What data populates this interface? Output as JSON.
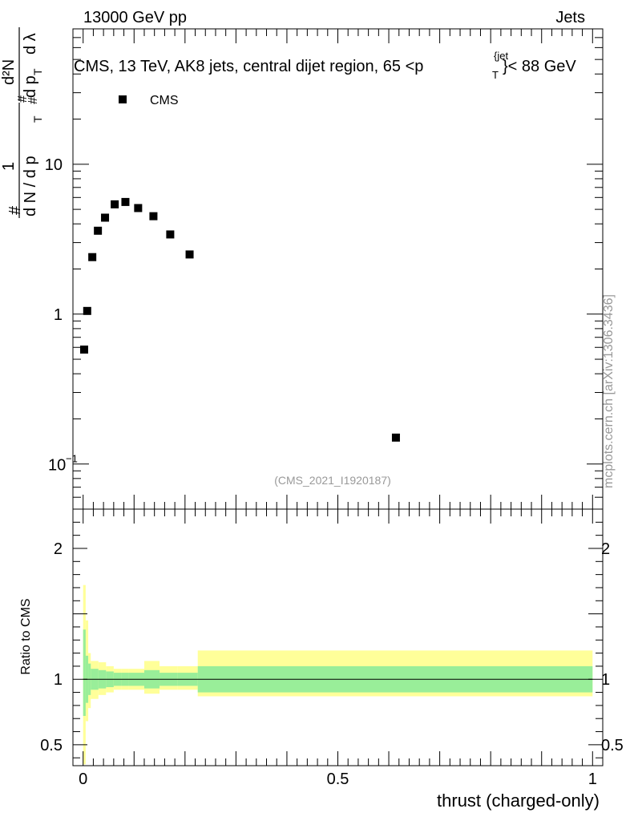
{
  "header": {
    "left": "13000 GeV pp",
    "right": "Jets"
  },
  "side_label": "mcplots.cern.ch [arXiv:1306.3436]",
  "analysis_tag": "(CMS_2021_I1920187)",
  "chart_data": [
    {
      "type": "scatter",
      "title": "CMS, 13 TeV, AK8 jets, central dijet region, 65 <p_T^{jet}< 88 GeV",
      "title_parts": {
        "main": "CMS, 13 TeV, AK8 jets, central dijet region, 65 <p",
        "sub": "T",
        "sup": "{jet",
        "tail": "}< 88 GeV"
      },
      "ylabel_parts": {
        "hash1": "#",
        "one": "1",
        "dN": "d N / d p",
        "T": "T",
        "hash2": "#",
        "d2N": "d²N",
        "dpT": "d p",
        "T2": "T",
        "dlambda": "d λ",
        "hash3": "#"
      },
      "yscale": "log",
      "ylim": [
        0.05,
        80
      ],
      "xlim": [
        -0.02,
        1.02
      ],
      "y_ticks": [
        {
          "value": 0.1,
          "label": "10",
          "exp": "−1"
        },
        {
          "value": 1,
          "label": "1"
        },
        {
          "value": 10,
          "label": "10"
        }
      ],
      "legend": {
        "entries": [
          "CMS"
        ],
        "position": "top-left"
      },
      "series": [
        {
          "name": "CMS",
          "x": [
            0.002,
            0.008,
            0.018,
            0.029,
            0.043,
            0.062,
            0.083,
            0.108,
            0.138,
            0.171,
            0.209,
            0.614
          ],
          "y": [
            0.58,
            1.05,
            2.4,
            3.6,
            4.4,
            5.4,
            5.6,
            5.1,
            4.5,
            3.4,
            2.5,
            0.15
          ]
        }
      ]
    },
    {
      "type": "area",
      "ylabel": "Ratio to CMS",
      "xlabel": "thrust (charged-only)",
      "yscale": "linear",
      "ylim": [
        0.34,
        2.3
      ],
      "xlim": [
        -0.02,
        1.02
      ],
      "x_ticks": [
        {
          "value": 0,
          "label": "0"
        },
        {
          "value": 0.5,
          "label": "0.5"
        },
        {
          "value": 1,
          "label": "1"
        }
      ],
      "y_ticks": [
        {
          "value": 0.5,
          "label": "0.5"
        },
        {
          "value": 1,
          "label": "1"
        },
        {
          "value": 2,
          "label": "2"
        }
      ],
      "bin_edges": [
        0,
        0.005,
        0.01,
        0.015,
        0.03,
        0.045,
        0.06,
        0.075,
        0.09,
        0.12,
        0.15,
        0.185,
        0.225,
        1.0
      ],
      "band_stat": {
        "lo": [
          0.72,
          0.82,
          0.88,
          0.92,
          0.93,
          0.94,
          0.95,
          0.95,
          0.95,
          0.93,
          0.95,
          0.95,
          0.9
        ],
        "hi": [
          1.38,
          1.18,
          1.12,
          1.08,
          1.07,
          1.06,
          1.05,
          1.05,
          1.05,
          1.07,
          1.05,
          1.05,
          1.1
        ]
      },
      "band_total": {
        "lo": [
          0.35,
          0.68,
          0.78,
          0.85,
          0.88,
          0.9,
          0.92,
          0.92,
          0.92,
          0.89,
          0.92,
          0.92,
          0.87
        ],
        "hi": [
          1.72,
          1.45,
          1.2,
          1.14,
          1.13,
          1.1,
          1.08,
          1.08,
          1.08,
          1.14,
          1.1,
          1.1,
          1.22
        ]
      },
      "reference_line": 1,
      "colors": {
        "stat": "#99ee99",
        "total": "#ffff99",
        "marker": "#000000"
      }
    }
  ]
}
